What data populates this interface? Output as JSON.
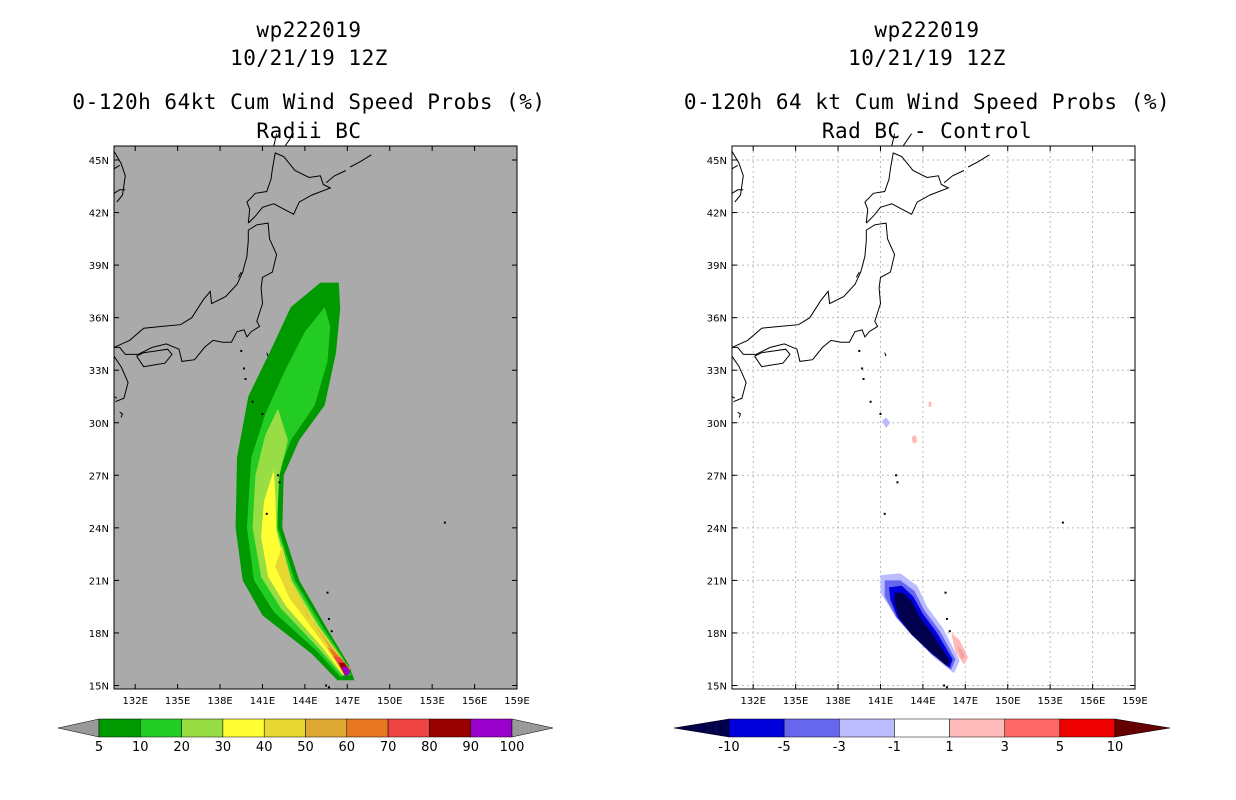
{
  "left": {
    "title": {
      "storm_id": "wp222019",
      "datetime": "10/21/19 12Z",
      "product": "0-120h 64kt Cum Wind Speed Probs (%)",
      "subtitle": "Radii BC"
    },
    "colorbar": {
      "labels": [
        "5",
        "10",
        "20",
        "30",
        "40",
        "50",
        "60",
        "70",
        "80",
        "90",
        "100"
      ],
      "colors": [
        "#009900",
        "#22cc22",
        "#99dd44",
        "#ffff33",
        "#e6d733",
        "#dfaa33",
        "#e87722",
        "#ee4444",
        "#990000",
        "#9900cc"
      ],
      "end_colors": [
        "#999999",
        "#999999"
      ]
    }
  },
  "right": {
    "title": {
      "storm_id": "wp222019",
      "datetime": "10/21/19 12Z",
      "product": "0-120h 64 kt Cum Wind Speed Probs (%)",
      "subtitle": "Rad BC - Control"
    },
    "colorbar": {
      "labels": [
        "-10",
        "-5",
        "-3",
        "-1",
        "1",
        "3",
        "5",
        "10"
      ],
      "colors": [
        "#0000dd",
        "#6666ee",
        "#bbbbff",
        "#ffffff",
        "#ffbbbb",
        "#ff6666",
        "#ee0000"
      ],
      "end_colors": [
        "#00004d",
        "#660000"
      ]
    }
  },
  "chart_data": [
    {
      "type": "heatmap",
      "title": "0-120h 64kt Cum Wind Speed Probs (%)",
      "subtitle": "Radii BC",
      "x_ticks": [
        "132E",
        "135E",
        "138E",
        "141E",
        "144E",
        "147E",
        "150E",
        "153E",
        "156E",
        "159E"
      ],
      "y_ticks": [
        "15N",
        "18N",
        "21N",
        "24N",
        "27N",
        "30N",
        "33N",
        "36N",
        "39N",
        "42N",
        "45N"
      ],
      "xlim": [
        130.5,
        159
      ],
      "ylim": [
        14.8,
        45.8
      ],
      "grid": false,
      "background": "#aaaaaa",
      "levels": [
        5,
        10,
        20,
        30,
        40,
        50,
        60,
        70,
        80,
        90,
        100
      ],
      "max_region": {
        "lon": 147,
        "lat": 15.6,
        "value_range": "90-100"
      },
      "track_extent": {
        "south": [
          147,
          15.5
        ],
        "north": [
          144,
          38
        ]
      }
    },
    {
      "type": "heatmap",
      "title": "0-120h 64 kt Cum Wind Speed Probs (%)",
      "subtitle": "Rad BC - Control",
      "x_ticks": [
        "132E",
        "135E",
        "138E",
        "141E",
        "144E",
        "147E",
        "150E",
        "153E",
        "156E",
        "159E"
      ],
      "y_ticks": [
        "15N",
        "18N",
        "21N",
        "24N",
        "27N",
        "30N",
        "33N",
        "36N",
        "39N",
        "42N",
        "45N"
      ],
      "xlim": [
        130.5,
        159
      ],
      "ylim": [
        14.8,
        45.8
      ],
      "grid": true,
      "levels": [
        -10,
        -5,
        -3,
        -1,
        1,
        3,
        5,
        10
      ],
      "negative_region": {
        "lon_range": [
          141,
          146.5
        ],
        "lat_range": [
          15.8,
          21.3
        ],
        "min_level": "<-10"
      },
      "positive_region": {
        "lon_range": [
          145.8,
          147.2
        ],
        "lat_range": [
          16.5,
          18
        ],
        "max_level": "1-3"
      }
    }
  ]
}
